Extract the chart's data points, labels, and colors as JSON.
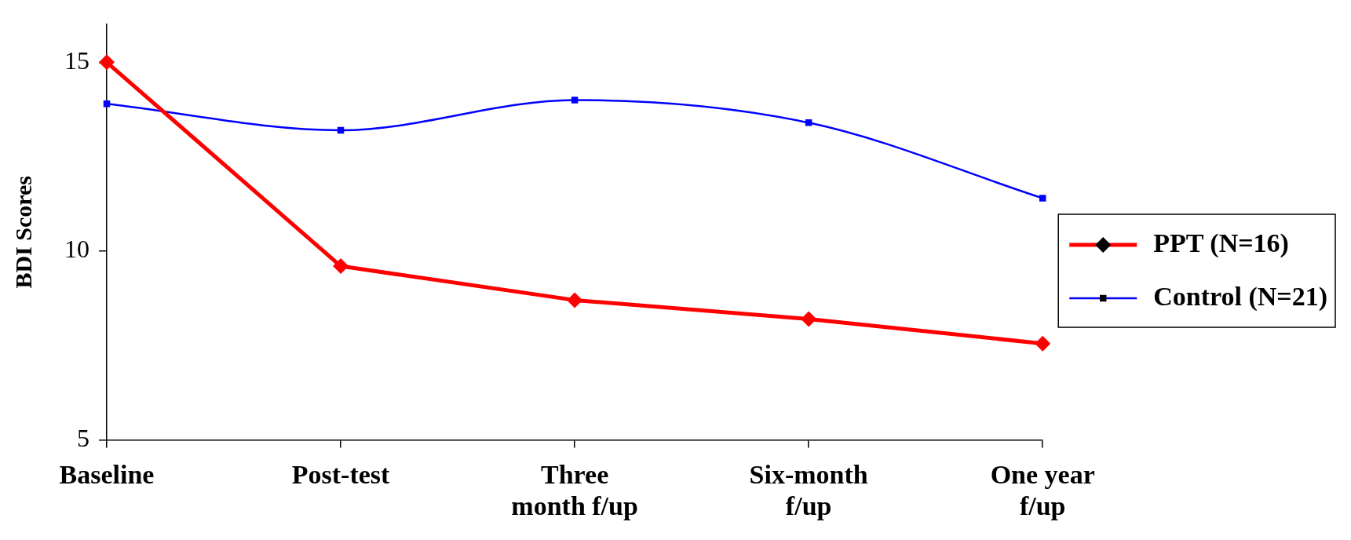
{
  "chart_data": {
    "type": "line",
    "ylabel": "BDI Scores",
    "categories": [
      "Baseline",
      "Post-test",
      "Three\nmonth f/up",
      "Six-month\nf/up",
      "One year\nf/up"
    ],
    "series": [
      {
        "name": "PPT (N=16)",
        "color": "#ff0000",
        "marker": "diamond",
        "values": [
          15.0,
          9.6,
          8.7,
          8.2,
          7.55
        ]
      },
      {
        "name": "Control (N=21)",
        "color": "#0000ff",
        "marker": "square",
        "values": [
          13.9,
          13.2,
          14.0,
          13.4,
          11.4
        ]
      }
    ],
    "ylim": [
      5,
      16
    ],
    "yticks": [
      5,
      10,
      15
    ],
    "grid": false,
    "legend": "right"
  }
}
